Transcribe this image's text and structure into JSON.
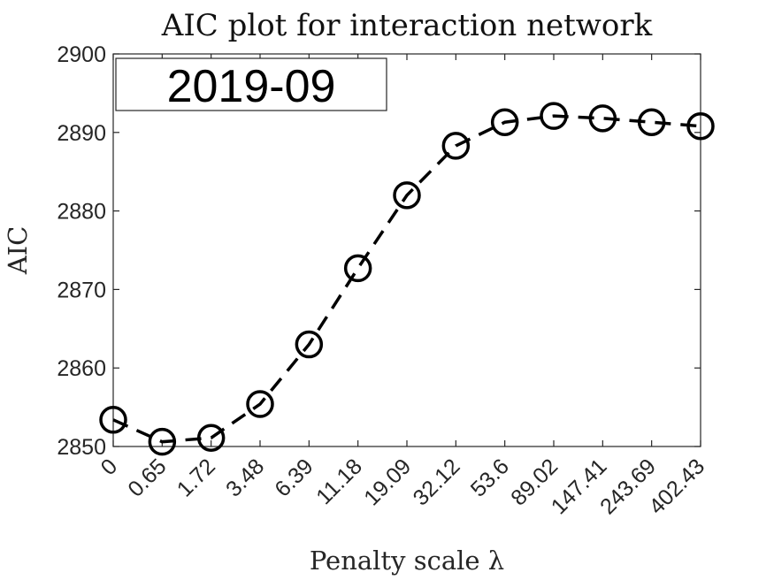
{
  "chart_data": {
    "type": "line",
    "title": "AIC plot for interaction network",
    "xlabel": "Penalty scale λ",
    "ylabel": "AIC",
    "annotation": "2019-09",
    "categories": [
      "0",
      "0.65",
      "1.72",
      "3.48",
      "6.39",
      "11.18",
      "19.09",
      "32.12",
      "53.6",
      "89.02",
      "147.41",
      "243.69",
      "402.43"
    ],
    "series": [
      {
        "values": [
          2853.4,
          2850.6,
          2851.1,
          2855.4,
          2863.0,
          2872.7,
          2882.0,
          2888.3,
          2891.3,
          2892.1,
          2891.8,
          2891.3,
          2890.8
        ],
        "color": "#000000",
        "line_style": "dashed",
        "marker": "open-circle"
      }
    ],
    "ylim": [
      2850,
      2900
    ],
    "yticks": [
      2850,
      2860,
      2870,
      2880,
      2890,
      2900
    ],
    "grid": false,
    "legend": "none"
  }
}
